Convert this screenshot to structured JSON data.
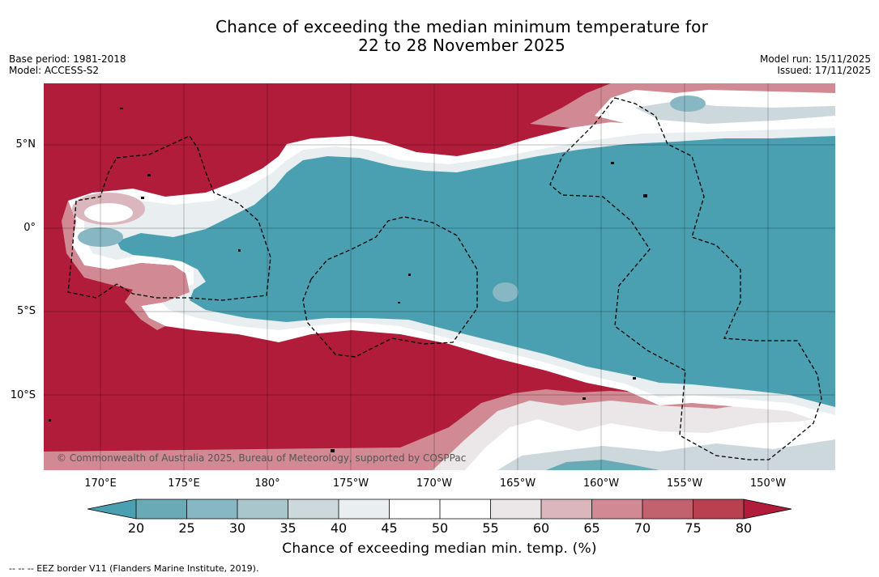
{
  "title_line1": "Chance of exceeding the median minimum temperature for",
  "title_line2": "22 to 28 November 2025",
  "base_period": "Base period: 1981-2018",
  "model": "Model: ACCESS-S2",
  "model_run": "Model run: 15/11/2025",
  "issued": "Issued: 17/11/2025",
  "copyright": "© Commonwealth of Australia 2025, Bureau of Meteorology, supported by COSPPac",
  "lat_labels": [
    "5°N",
    "0°",
    "5°S",
    "10°S"
  ],
  "lon_labels": [
    "170°E",
    "175°E",
    "180°",
    "175°W",
    "170°W",
    "165°W",
    "160°W",
    "155°W",
    "150°W"
  ],
  "colorbar": {
    "ticks": [
      "20",
      "25",
      "30",
      "35",
      "40",
      "45",
      "50",
      "55",
      "60",
      "65",
      "70",
      "75",
      "80"
    ],
    "label": "Chance of exceeding median min. temp. (%)",
    "colors": {
      "below20": "#4aa0b0",
      "c20_25": "#6aa9b6",
      "c25_30": "#87b7c3",
      "c30_35": "#a9c6cd",
      "c35_40": "#ccd8db",
      "c40_45": "#e9eef1",
      "c45_50": "#ffffff",
      "c50_55": "#ffffff",
      "c55_60": "#ebe6e8",
      "c60_65": "#dcb6bd",
      "c65_70": "#d18a93",
      "c70_75": "#c3626f",
      "c75_80": "#b8404f",
      "above80": "#b01c39"
    }
  },
  "footnote": "--  --  -- EEZ border V11 (Flanders Marine Institute, 2019)."
}
